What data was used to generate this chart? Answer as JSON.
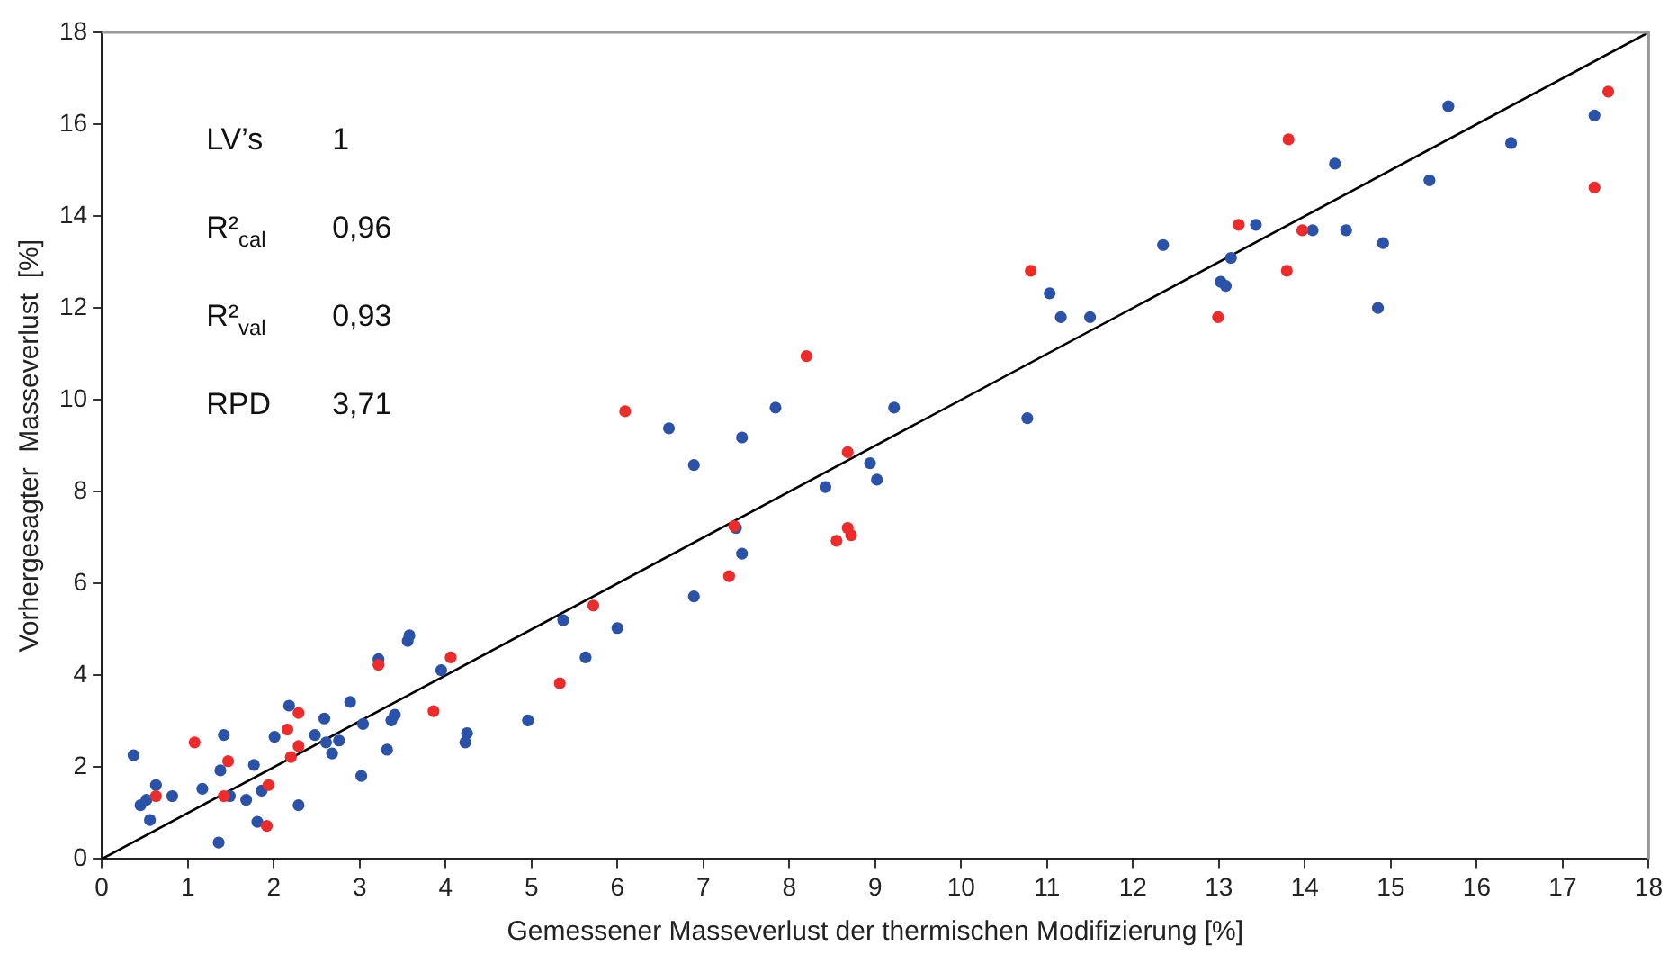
{
  "chart_data": {
    "type": "scatter",
    "xlabel": "Gemessener Masseverlust der thermischen Modifizierung [%]",
    "ylabel": "Vorhergesagter  Masseverlust  [%]",
    "xlim": [
      0,
      18
    ],
    "ylim": [
      0,
      18
    ],
    "xticks": [
      0,
      1,
      2,
      3,
      4,
      5,
      6,
      7,
      8,
      9,
      10,
      11,
      12,
      13,
      14,
      15,
      16,
      17,
      18
    ],
    "yticks": [
      0,
      2,
      4,
      6,
      8,
      10,
      12,
      14,
      16,
      18
    ],
    "marker": "circle",
    "annotations": [
      "LV’s",
      "1",
      "R²$_{cal}$",
      "0,96",
      "R²$_{val}$",
      "0,93",
      "RPD",
      "3,71"
    ],
    "series": [
      {
        "color": "#2a52a8",
        "x": [
          0.37,
          0.45,
          0.52,
          0.63,
          0.56,
          0.82,
          1.17,
          1.42,
          1.38,
          1.49,
          1.36,
          1.68,
          1.77,
          1.86,
          1.81,
          2.01,
          2.18,
          2.29,
          2.48,
          2.59,
          2.61,
          2.68,
          2.76,
          2.89,
          3.02,
          3.04,
          3.22,
          3.32,
          3.37,
          3.41,
          3.56,
          3.58,
          3.95,
          4.25,
          4.23,
          4.96,
          5.37,
          5.63,
          6.0,
          6.6,
          6.89,
          6.89,
          7.45,
          7.38,
          7.45,
          7.84,
          8.42,
          8.94,
          9.02,
          9.22,
          10.77,
          11.03,
          11.16,
          11.5,
          12.35,
          13.02,
          13.08,
          13.14,
          13.43,
          14.09,
          14.35,
          14.48,
          14.85,
          14.91,
          15.45,
          15.67,
          16.4,
          17.37
        ],
        "values": [
          2.26,
          1.17,
          1.29,
          1.61,
          0.85,
          1.37,
          1.53,
          2.7,
          1.93,
          1.37,
          0.36,
          1.29,
          2.05,
          1.49,
          0.81,
          2.66,
          3.34,
          1.17,
          2.7,
          3.06,
          2.54,
          2.3,
          2.58,
          3.42,
          1.81,
          2.94,
          4.35,
          2.38,
          3.02,
          3.14,
          4.75,
          4.87,
          4.11,
          2.74,
          2.54,
          3.02,
          5.2,
          4.39,
          5.03,
          9.38,
          8.58,
          5.72,
          9.18,
          7.21,
          6.65,
          9.83,
          8.1,
          8.62,
          8.26,
          9.83,
          9.6,
          12.32,
          11.8,
          11.8,
          13.37,
          12.57,
          12.48,
          13.09,
          13.81,
          13.69,
          15.14,
          13.69,
          12.0,
          13.41,
          14.78,
          16.39,
          15.59,
          16.19
        ]
      },
      {
        "color": "#ee2b2b",
        "x": [
          0.63,
          1.08,
          1.47,
          1.42,
          1.94,
          1.92,
          2.16,
          2.29,
          2.2,
          2.29,
          3.22,
          3.86,
          4.06,
          5.33,
          5.72,
          6.09,
          7.3,
          7.36,
          8.2,
          8.55,
          8.68,
          8.72,
          8.68,
          10.81,
          12.99,
          13.23,
          13.79,
          13.81,
          13.97,
          17.37,
          17.53
        ],
        "values": [
          1.37,
          2.54,
          2.13,
          1.37,
          1.61,
          0.72,
          2.82,
          3.18,
          2.22,
          2.46,
          4.23,
          3.22,
          4.39,
          3.83,
          5.52,
          9.75,
          6.16,
          7.25,
          10.95,
          6.93,
          7.21,
          7.05,
          8.86,
          12.81,
          11.8,
          13.81,
          12.81,
          15.67,
          13.69,
          14.62,
          16.71
        ]
      },
      {
        "type": "line",
        "marker": "none",
        "color": "#000000",
        "x": [
          0,
          18
        ],
        "values": [
          0,
          18
        ]
      }
    ]
  }
}
